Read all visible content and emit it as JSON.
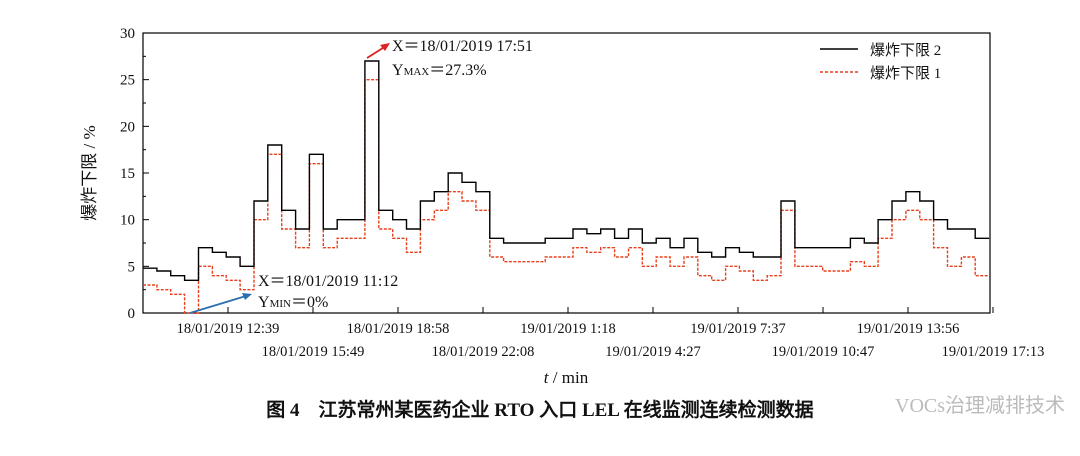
{
  "chart_data": {
    "type": "line",
    "title": "图 4　江苏常州某医药企业 RTO 入口 LEL 在线监测连续检测数据",
    "xlabel_italic": "t",
    "xlabel_unit": " / min",
    "ylabel": "爆炸下限 / %",
    "ylim": [
      0,
      30
    ],
    "yticks": [
      "0",
      "5",
      "10",
      "15",
      "20",
      "25",
      "30"
    ],
    "xlim_minutes_from_0929": [
      0,
      1893
    ],
    "xticks_upper": [
      "18/01/2019 12:39",
      "18/01/2019 18:58",
      "19/01/2019 1:18",
      "19/01/2019 7:37",
      "19/01/2019 13:56"
    ],
    "xticks_lower": [
      "18/01/2019 15:49",
      "18/01/2019 22:08",
      "19/01/2019 4:27",
      "19/01/2019 10:47",
      "19/01/2019 17:13"
    ],
    "x_step_minutes": 31,
    "series": [
      {
        "name": "爆炸下限 2",
        "color": "#000000",
        "style": "solid",
        "values": [
          4.8,
          4.5,
          4,
          3.5,
          7,
          6.5,
          6,
          5,
          12,
          18,
          11,
          9,
          17,
          9,
          10,
          10,
          27,
          11,
          10,
          9,
          12,
          13,
          15,
          14,
          13,
          8,
          7.5,
          7.5,
          7.5,
          8,
          8,
          9,
          8.5,
          9,
          8,
          9,
          7.5,
          8,
          7,
          8,
          6.5,
          6,
          7,
          6.5,
          6,
          6,
          12,
          7,
          7,
          7,
          7,
          8,
          7.5,
          10,
          12,
          13,
          12,
          10,
          9,
          9,
          8
        ]
      },
      {
        "name": "爆炸下限 1",
        "color": "#e8401c",
        "style": "dashed",
        "values": [
          3,
          2.5,
          2,
          0,
          5,
          4,
          3.5,
          2.5,
          10,
          17,
          9,
          7,
          16,
          7,
          8,
          8,
          25,
          9,
          8,
          6.5,
          10,
          11,
          13,
          12,
          11,
          6,
          5.5,
          5.5,
          5.5,
          6,
          6,
          7,
          6.5,
          7,
          6,
          7,
          5,
          6,
          5,
          6,
          4,
          3.5,
          5,
          4.5,
          3.5,
          4,
          11,
          5,
          5,
          4.5,
          4.5,
          5.5,
          5,
          8,
          10,
          11,
          10,
          7,
          5,
          6,
          4
        ]
      }
    ],
    "legend_position": "top-right",
    "annotations": [
      {
        "text_x": "X＝18/01/2019 17:51",
        "text_y": "Y",
        "sub": "MAX",
        "value": "＝27.3%",
        "color": "#d22"
      },
      {
        "text_x": "X＝18/01/2019 11:12",
        "text_y": "Y",
        "sub": "MIN",
        "value": "＝0%",
        "color": "#2a6fb0"
      }
    ],
    "watermark": "VOCs治理减排技术"
  }
}
